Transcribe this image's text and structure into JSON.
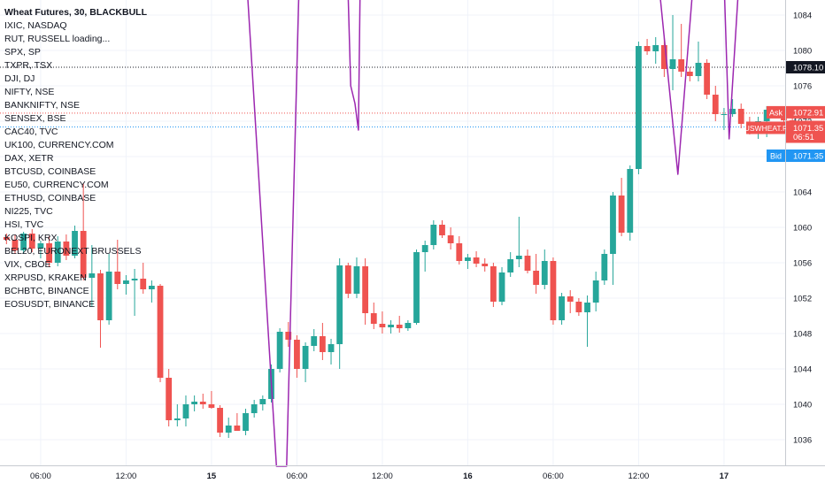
{
  "legend": {
    "title": "Wheat Futures, 30, BLACKBULL",
    "symbols": [
      "IXIC, NASDAQ",
      "RUT, RUSSELL loading...",
      "SPX, SP",
      "TXPR, TSX",
      "DJI, DJ",
      "NIFTY, NSE",
      "BANKNIFTY, NSE",
      "SENSEX, BSE",
      "CAC40, TVC",
      "UK100, CURRENCY.COM",
      "DAX, XETR",
      "BTCUSD, COINBASE",
      "EU50, CURRENCY.COM",
      "ETHUSD, COINBASE",
      "NI225, TVC",
      "HSI, TVC",
      "KOSPI, KRX",
      "BEL20, EURONEXT BRUSSELS",
      "VIX, CBOE",
      "XRPUSD, KRAKEN",
      "BCHBTC, BINANCE",
      "EOSUSDT, BINANCE"
    ]
  },
  "price_labels": {
    "dji_value": "1078.10",
    "ask_tag": "Ask",
    "ask_value": "1072.91",
    "symbol_tag": "USWHEAT.F",
    "last_value": "1071.35",
    "countdown": "06:51",
    "bid_tag": "Bid",
    "bid_value": "1071.35"
  },
  "colors": {
    "up": "#26a69a",
    "down": "#ef5350",
    "overlay": "#9c27b0",
    "ask": "#ef5350",
    "bid": "#2196f3",
    "dji": "#131722"
  },
  "chart_data": {
    "type": "candlestick",
    "title": "Wheat Futures, 30, BLACKBULL",
    "y_axis": {
      "ticks": [
        1036,
        1040,
        1044,
        1048,
        1052,
        1056,
        1060,
        1064,
        1068,
        1072,
        1076,
        1080,
        1084
      ],
      "range": [
        1033,
        1086.5
      ]
    },
    "x_axis": {
      "ticks": [
        "06:00",
        "12:00",
        "15",
        "06:00",
        "12:00",
        "16",
        "06:00",
        "12:00",
        "17"
      ],
      "tick_bar_index": [
        4,
        14,
        24,
        34,
        44,
        54,
        64,
        74,
        84
      ]
    },
    "horizontal_lines": {
      "dji": 1078.1,
      "ask": 1072.91,
      "last": 1071.35,
      "bid": 1071.35
    },
    "candles": [
      [
        1058.9,
        1059.3,
        1058.1,
        1058.6
      ],
      [
        1058.6,
        1059.2,
        1057.0,
        1057.4
      ],
      [
        1057.4,
        1059.5,
        1057.0,
        1059.3
      ],
      [
        1059.3,
        1059.8,
        1057.2,
        1057.6
      ],
      [
        1057.6,
        1058.5,
        1056.5,
        1058.2
      ],
      [
        1058.2,
        1059.0,
        1055.5,
        1056.0
      ],
      [
        1056.0,
        1059.0,
        1055.6,
        1058.4
      ],
      [
        1058.4,
        1059.2,
        1056.3,
        1056.8
      ],
      [
        1056.8,
        1060.2,
        1056.5,
        1059.6
      ],
      [
        1059.6,
        1065.0,
        1054.0,
        1054.3
      ],
      [
        1054.3,
        1058.0,
        1051.0,
        1054.8
      ],
      [
        1054.8,
        1055.2,
        1046.4,
        1049.5
      ],
      [
        1049.5,
        1057.0,
        1049.0,
        1055.0
      ],
      [
        1055.0,
        1058.6,
        1053.0,
        1053.6
      ],
      [
        1053.6,
        1054.6,
        1052.4,
        1054.0
      ],
      [
        1054.0,
        1055.3,
        1050.0,
        1054.2
      ],
      [
        1054.2,
        1056.0,
        1052.5,
        1053.0
      ],
      [
        1053.0,
        1054.0,
        1051.5,
        1053.4
      ],
      [
        1053.4,
        1053.6,
        1042.5,
        1043.0
      ],
      [
        1043.0,
        1044.0,
        1037.5,
        1038.2
      ],
      [
        1038.2,
        1040.0,
        1037.5,
        1038.4
      ],
      [
        1038.4,
        1041.0,
        1037.5,
        1040.0
      ],
      [
        1040.0,
        1041.0,
        1039.2,
        1040.3
      ],
      [
        1040.3,
        1041.2,
        1039.5,
        1040.0
      ],
      [
        1040.0,
        1041.5,
        1039.5,
        1039.6
      ],
      [
        1039.6,
        1039.9,
        1036.3,
        1036.8
      ],
      [
        1036.8,
        1038.5,
        1036.2,
        1037.6
      ],
      [
        1037.6,
        1039.0,
        1037.0,
        1037.0
      ],
      [
        1037.0,
        1039.5,
        1036.5,
        1039.0
      ],
      [
        1039.0,
        1040.5,
        1038.5,
        1040.0
      ],
      [
        1040.0,
        1041.0,
        1039.3,
        1040.6
      ],
      [
        1040.6,
        1044.5,
        1040.2,
        1044.0
      ],
      [
        1044.0,
        1048.6,
        1043.6,
        1048.2
      ],
      [
        1048.2,
        1049.3,
        1046.5,
        1047.3
      ],
      [
        1047.3,
        1047.8,
        1043.0,
        1044.0
      ],
      [
        1044.0,
        1047.0,
        1042.5,
        1046.6
      ],
      [
        1046.6,
        1048.5,
        1046.0,
        1047.7
      ],
      [
        1047.7,
        1049.2,
        1045.0,
        1045.9
      ],
      [
        1045.9,
        1047.4,
        1044.5,
        1046.8
      ],
      [
        1046.8,
        1056.5,
        1044.0,
        1055.7
      ],
      [
        1055.7,
        1056.0,
        1052.0,
        1052.5
      ],
      [
        1052.5,
        1056.6,
        1052.0,
        1055.6
      ],
      [
        1055.6,
        1056.5,
        1049.0,
        1050.3
      ],
      [
        1050.3,
        1051.5,
        1048.5,
        1049.1
      ],
      [
        1049.1,
        1050.5,
        1048.0,
        1048.7
      ],
      [
        1048.7,
        1049.5,
        1048.0,
        1049.0
      ],
      [
        1049.0,
        1050.0,
        1048.1,
        1048.6
      ],
      [
        1048.6,
        1049.5,
        1048.3,
        1049.2
      ],
      [
        1049.2,
        1057.5,
        1049.0,
        1057.2
      ],
      [
        1057.2,
        1058.5,
        1055.0,
        1058.0
      ],
      [
        1058.0,
        1060.8,
        1057.5,
        1060.3
      ],
      [
        1060.3,
        1060.8,
        1058.8,
        1059.1
      ],
      [
        1059.1,
        1060.0,
        1057.5,
        1058.2
      ],
      [
        1058.2,
        1059.0,
        1055.8,
        1056.2
      ],
      [
        1056.2,
        1057.0,
        1055.3,
        1056.6
      ],
      [
        1056.6,
        1057.3,
        1055.5,
        1055.9
      ],
      [
        1055.9,
        1056.5,
        1055.0,
        1055.6
      ],
      [
        1055.6,
        1056.0,
        1051.0,
        1051.6
      ],
      [
        1051.6,
        1055.5,
        1051.2,
        1054.9
      ],
      [
        1054.9,
        1057.2,
        1054.4,
        1056.4
      ],
      [
        1056.4,
        1061.2,
        1055.5,
        1056.8
      ],
      [
        1056.8,
        1057.5,
        1054.8,
        1055.1
      ],
      [
        1055.1,
        1057.0,
        1052.5,
        1053.5
      ],
      [
        1053.5,
        1057.5,
        1053.0,
        1056.2
      ],
      [
        1056.2,
        1056.6,
        1049.0,
        1049.5
      ],
      [
        1049.5,
        1052.6,
        1049.0,
        1052.2
      ],
      [
        1052.2,
        1052.9,
        1050.3,
        1051.6
      ],
      [
        1051.6,
        1052.0,
        1050.0,
        1050.4
      ],
      [
        1050.4,
        1052.3,
        1046.5,
        1051.5
      ],
      [
        1051.5,
        1055.0,
        1050.5,
        1054.0
      ],
      [
        1054.0,
        1057.5,
        1053.5,
        1057.0
      ],
      [
        1057.0,
        1064.0,
        1053.5,
        1063.6
      ],
      [
        1063.6,
        1065.6,
        1059.0,
        1059.4
      ],
      [
        1059.4,
        1067.0,
        1058.5,
        1066.6
      ],
      [
        1066.6,
        1081.0,
        1066.0,
        1080.5
      ],
      [
        1080.5,
        1081.3,
        1079.5,
        1079.9
      ],
      [
        1079.9,
        1081.5,
        1078.5,
        1080.6
      ],
      [
        1080.6,
        1081.5,
        1077.0,
        1077.9
      ],
      [
        1077.9,
        1084.0,
        1075.5,
        1079.0
      ],
      [
        1079.0,
        1083.0,
        1077.0,
        1077.6
      ],
      [
        1077.6,
        1078.1,
        1076.5,
        1077.1
      ],
      [
        1077.1,
        1081.0,
        1076.5,
        1078.6
      ],
      [
        1078.6,
        1079.0,
        1074.5,
        1075.0
      ],
      [
        1075.0,
        1076.0,
        1072.0,
        1072.8
      ],
      [
        1072.8,
        1073.5,
        1071.0,
        1072.8
      ],
      [
        1072.8,
        1074.5,
        1072.5,
        1073.4
      ],
      [
        1073.4,
        1074.0,
        1071.2,
        1071.7
      ],
      [
        1071.7,
        1072.5,
        1070.5,
        1070.9
      ],
      [
        1070.9,
        1072.5,
        1070.0,
        1072.0
      ],
      [
        1072.0,
        1073.7,
        1070.2,
        1073.3
      ],
      [
        1073.3,
        1073.7,
        1072.8,
        1073.1
      ],
      [
        1073.1,
        1073.6,
        1071.5,
        1072.1
      ],
      [
        1072.1,
        1072.6,
        1071.2,
        1071.35
      ]
    ],
    "overlay_series": {
      "color": "#9c27b0",
      "points": [
        [
          27.8,
          1093
        ],
        [
          31.6,
          1033
        ],
        [
          32.8,
          1033
        ],
        [
          34.4,
          1093
        ],
        [
          39.8,
          1093
        ],
        [
          40.3,
          1076
        ],
        [
          40.8,
          1074
        ],
        [
          41.2,
          1071
        ],
        [
          41.5,
          1095
        ],
        [
          75.6,
          1095
        ],
        [
          78.6,
          1066
        ],
        [
          81.0,
          1095
        ],
        [
          82.0,
          1093
        ],
        [
          82.6,
          1091
        ],
        [
          83.9,
          1091
        ],
        [
          84.6,
          1070
        ],
        [
          86.2,
          1095
        ]
      ]
    }
  }
}
